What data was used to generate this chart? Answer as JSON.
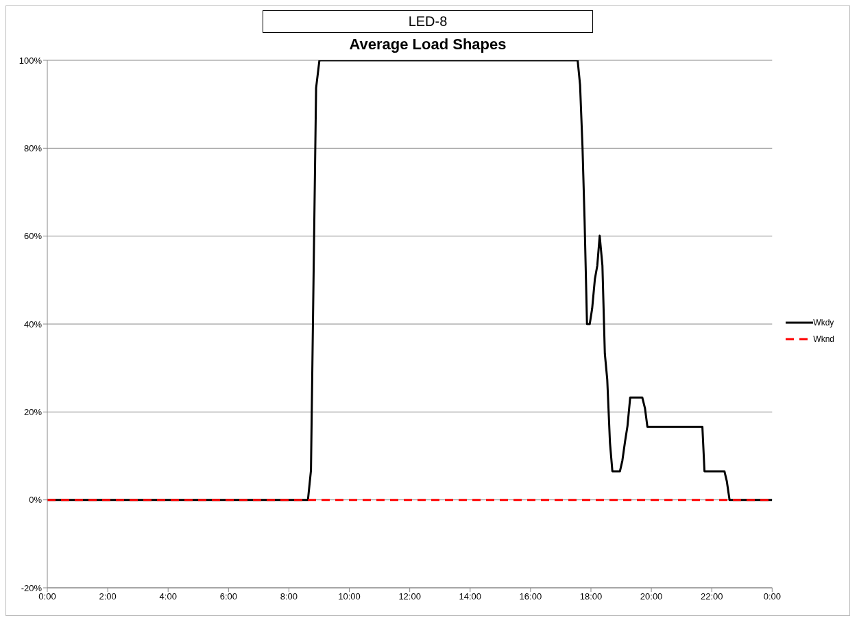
{
  "chart_data": {
    "type": "line",
    "title": "LED-8",
    "subtitle": "Average Load Shapes",
    "xlim": [
      0,
      24
    ],
    "xticks": [
      {
        "value": 0,
        "label": "0:00"
      },
      {
        "value": 2,
        "label": "2:00"
      },
      {
        "value": 4,
        "label": "4:00"
      },
      {
        "value": 6,
        "label": "6:00"
      },
      {
        "value": 8,
        "label": "8:00"
      },
      {
        "value": 10,
        "label": "10:00"
      },
      {
        "value": 12,
        "label": "12:00"
      },
      {
        "value": 14,
        "label": "14:00"
      },
      {
        "value": 16,
        "label": "16:00"
      },
      {
        "value": 18,
        "label": "18:00"
      },
      {
        "value": 20,
        "label": "20:00"
      },
      {
        "value": 22,
        "label": "22:00"
      },
      {
        "value": 24,
        "label": "0:00"
      }
    ],
    "ylim": [
      -20,
      100
    ],
    "yticks": [
      {
        "value": -20,
        "label": "-20%"
      },
      {
        "value": 0,
        "label": "0%"
      },
      {
        "value": 20,
        "label": "20%"
      },
      {
        "value": 40,
        "label": "40%"
      },
      {
        "value": 60,
        "label": "60%"
      },
      {
        "value": 80,
        "label": "80%"
      },
      {
        "value": 100,
        "label": "100%"
      }
    ],
    "grid": "y",
    "legend": "right",
    "series": [
      {
        "name": "Wkdy",
        "color": "#000000",
        "line_style": "solid",
        "x": [
          0,
          8.63,
          8.73,
          8.9,
          9.01,
          17.56,
          17.64,
          17.72,
          17.79,
          17.87,
          17.96,
          18.04,
          18.13,
          18.21,
          18.29,
          18.38,
          18.46,
          18.54,
          18.63,
          18.71,
          18.96,
          19.04,
          19.13,
          19.21,
          19.3,
          19.7,
          19.79,
          19.87,
          21.69,
          21.76,
          22.42,
          22.5,
          22.59,
          24
        ],
        "values": [
          0,
          0,
          6.7,
          93.7,
          100,
          100,
          94.4,
          80.4,
          63.5,
          40,
          40,
          43.5,
          50.2,
          53.3,
          60.1,
          53.3,
          33.3,
          27.4,
          13,
          6.5,
          6.5,
          8.9,
          13.3,
          16.8,
          23.3,
          23.3,
          20.8,
          16.6,
          16.6,
          6.5,
          6.5,
          4.2,
          0,
          0
        ]
      },
      {
        "name": "Wknd",
        "color": "#ff0000",
        "line_style": "dashed",
        "x": [
          0,
          24
        ],
        "values": [
          0,
          0
        ]
      }
    ]
  }
}
